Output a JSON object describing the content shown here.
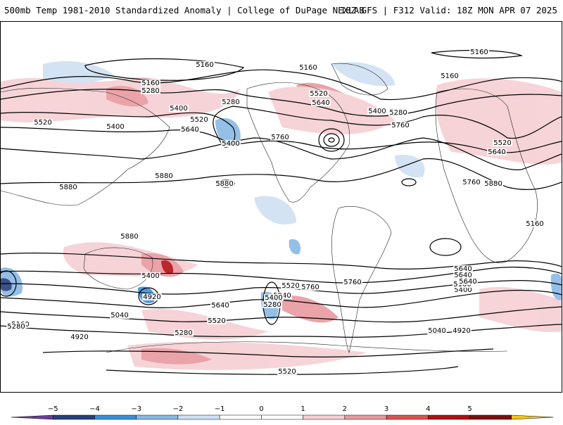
{
  "header": {
    "title_left": "500mb Temp 1981-2010 Standardized Anomaly | College of DuPage NEXLAB",
    "title_right": "18Z GFS | F312 Valid: 18Z MON APR 07 2025"
  },
  "map": {
    "contour_labels": [
      "5040",
      "5160",
      "5160",
      "5160",
      "5160",
      "5280",
      "5280",
      "5520",
      "5640",
      "5400",
      "5280",
      "5520",
      "5400",
      "5640",
      "5520",
      "5400",
      "5760",
      "5760",
      "5400",
      "5520",
      "5640",
      "5880",
      "5880",
      "5880",
      "5760",
      "5880",
      "5880",
      "5160",
      "5400",
      "5520",
      "5640",
      "5640",
      "5400",
      "5160",
      "5040",
      "5760",
      "5640",
      "5760",
      "5640",
      "5520",
      "5400",
      "5280",
      "5040",
      "5160",
      "4920",
      "5280",
      "4920",
      "5520",
      "5040",
      "5280",
      "4920",
      "5160"
    ],
    "anomaly_colors": {
      "-5": "#6a3d9a",
      "-4": "#27407a",
      "-3": "#3a8fd6",
      "-2": "#89b9e4",
      "-1": "#cfe0f2",
      "0": "#ffffff",
      "1": "#f6cfd3",
      "2": "#e89a9f",
      "3": "#d9534f",
      "4": "#b30f16",
      "5": "#7a1010"
    }
  },
  "colorbar": {
    "ticks": [
      "−5",
      "−4",
      "−3",
      "−2",
      "−1",
      "0",
      "1",
      "2",
      "3",
      "4",
      "5"
    ],
    "colors": [
      "#6a3d9a",
      "#27407a",
      "#3a8fd6",
      "#89b9e4",
      "#cfe0f2",
      "#ffffff",
      "#ffffff",
      "#f6cfd3",
      "#e89a9f",
      "#d9534f",
      "#b30f16",
      "#7a1010",
      "#f5c518"
    ]
  }
}
